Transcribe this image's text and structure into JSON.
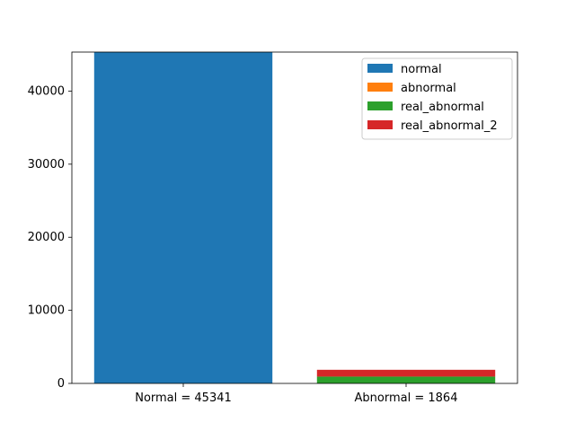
{
  "chart_data": {
    "type": "bar",
    "stacked": true,
    "title": "",
    "xlabel": "",
    "ylabel": "",
    "categories": [
      "Normal = 45341",
      "Abnormal = 1864"
    ],
    "ylim": [
      0,
      45341
    ],
    "yticks": [
      0,
      10000,
      20000,
      30000,
      40000
    ],
    "grid": false,
    "legend_position": "top-right",
    "series": [
      {
        "name": "normal",
        "color": "#1f77b4",
        "values": [
          45341,
          0
        ]
      },
      {
        "name": "abnormal",
        "color": "#ff7f0e",
        "values": [
          0,
          0
        ]
      },
      {
        "name": "real_abnormal",
        "color": "#2ca02c",
        "values": [
          0,
          932
        ]
      },
      {
        "name": "real_abnormal_2",
        "color": "#d62728",
        "values": [
          0,
          932
        ]
      }
    ]
  }
}
